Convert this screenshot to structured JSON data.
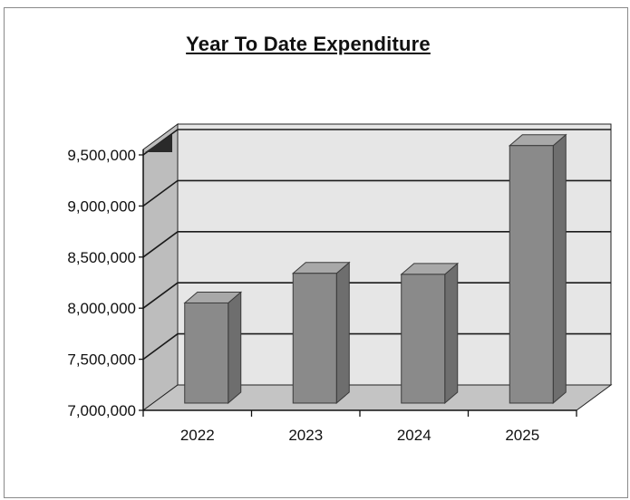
{
  "chart_data": {
    "type": "bar",
    "title": "Year To Date Expenditure",
    "categories": [
      "2022",
      "2023",
      "2024",
      "2025"
    ],
    "values": [
      7980000,
      8270000,
      8260000,
      9520000
    ],
    "ylim": [
      7000000,
      9500000
    ],
    "yticks": [
      7000000,
      7500000,
      8000000,
      8500000,
      9000000,
      9500000
    ],
    "ytick_labels": [
      "7,000,000",
      "7,500,000",
      "8,000,000",
      "8,500,000",
      "9,000,000",
      "9,500,000"
    ],
    "grid": true,
    "legend": "none",
    "xlabel": "",
    "ylabel": ""
  },
  "colors": {
    "bar_front": "#8a8a8a",
    "bar_side": "#6e6e6e",
    "bar_top": "#a8a8a8",
    "back_wall": "#e6e6e6",
    "side_wall": "#bdbdbd",
    "floor": "#c4c4c4",
    "gridline": "#1a1a1a"
  }
}
